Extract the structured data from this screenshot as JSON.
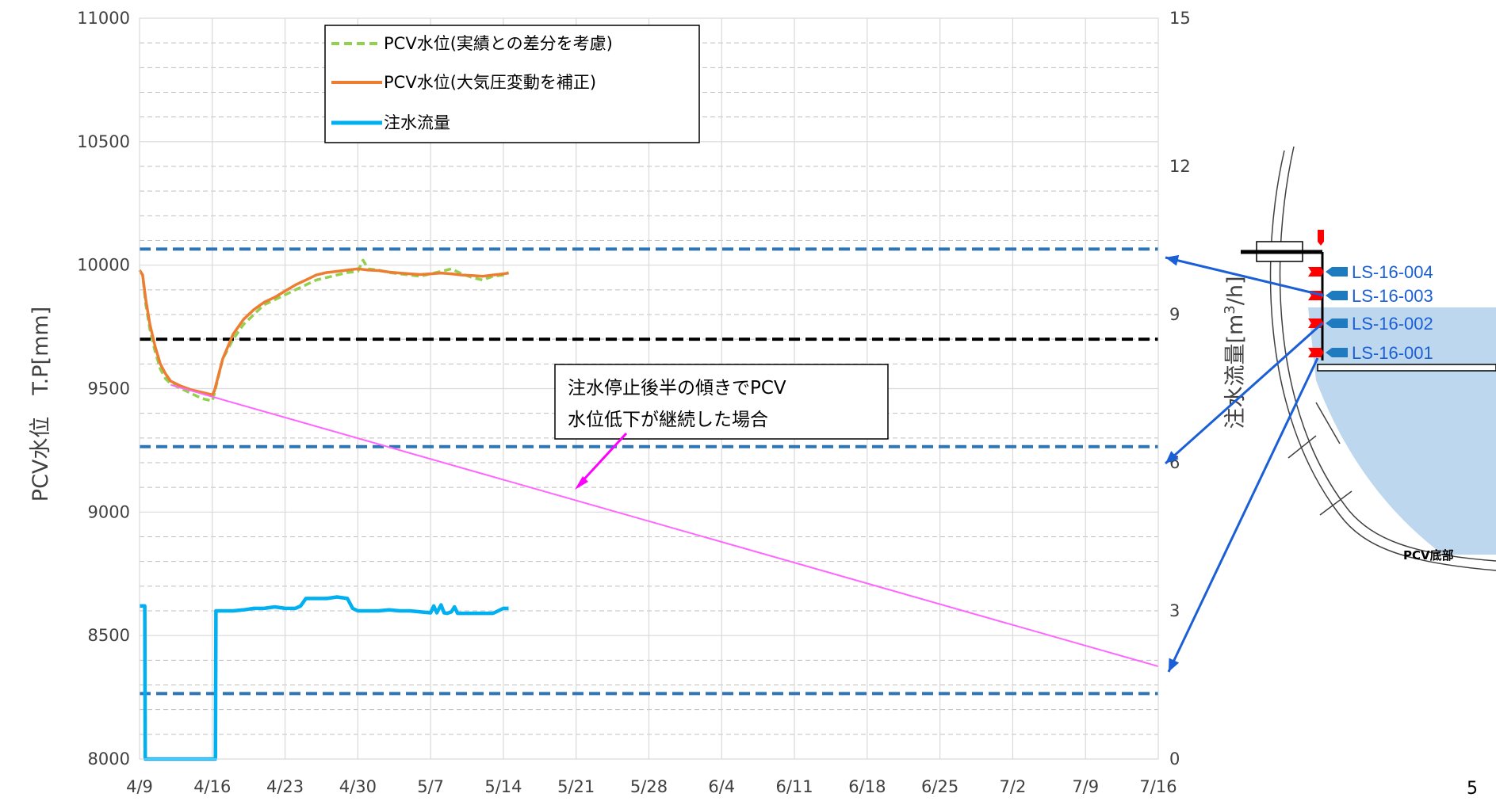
{
  "chart_data": {
    "type": "line",
    "y1label": "PCV水位　T.P[mm]",
    "y2label_main": "注水流量[m",
    "y2label_sup": "3",
    "y2label_tail": "/h]",
    "y1lim": [
      8000,
      11000
    ],
    "y2lim": [
      0,
      15
    ],
    "y1ticks": [
      "8000",
      "8500",
      "9000",
      "9500",
      "10000",
      "10500",
      "11000"
    ],
    "y2ticks": [
      "0",
      "3",
      "6",
      "9",
      "12",
      "15"
    ],
    "x_categories": [
      "4/9",
      "4/16",
      "4/23",
      "4/30",
      "5/7",
      "5/14",
      "5/21",
      "5/28",
      "6/4",
      "6/11",
      "6/18",
      "6/25",
      "7/2",
      "7/9",
      "7/16"
    ],
    "grid": true,
    "legend_position": "top-left",
    "series": [
      {
        "name": "PCV水位(実績との差分を考慮)",
        "axis": "y1",
        "style": "dashed",
        "color": "#92d050",
        "points": [
          [
            0,
            9980
          ],
          [
            0.3,
            9960
          ],
          [
            0.6,
            9840
          ],
          [
            1,
            9740
          ],
          [
            1.5,
            9650
          ],
          [
            2,
            9580
          ],
          [
            2.5,
            9540
          ],
          [
            3,
            9520
          ],
          [
            4,
            9500
          ],
          [
            5,
            9480
          ],
          [
            6,
            9460
          ],
          [
            7,
            9450
          ],
          [
            7.2,
            9480
          ],
          [
            8,
            9620
          ],
          [
            9,
            9700
          ],
          [
            10,
            9760
          ],
          [
            11,
            9800
          ],
          [
            12,
            9840
          ],
          [
            13,
            9860
          ],
          [
            14,
            9880
          ],
          [
            15,
            9900
          ],
          [
            16,
            9920
          ],
          [
            17,
            9940
          ],
          [
            18,
            9950
          ],
          [
            19,
            9960
          ],
          [
            20,
            9970
          ],
          [
            21,
            9975
          ],
          [
            21.5,
            10020
          ],
          [
            22,
            9985
          ],
          [
            23,
            9980
          ],
          [
            24,
            9970
          ],
          [
            25,
            9965
          ],
          [
            26,
            9960
          ],
          [
            27,
            9955
          ],
          [
            28,
            9965
          ],
          [
            29,
            9975
          ],
          [
            30,
            9985
          ],
          [
            31,
            9965
          ],
          [
            32,
            9950
          ],
          [
            33,
            9940
          ],
          [
            34,
            9955
          ],
          [
            35,
            9960
          ],
          [
            35.5,
            9970
          ]
        ]
      },
      {
        "name": "PCV水位(大気圧変動を補正)",
        "axis": "y1",
        "style": "solid",
        "color": "#ed7d31",
        "points": [
          [
            0,
            9980
          ],
          [
            0.3,
            9960
          ],
          [
            0.6,
            9860
          ],
          [
            1,
            9760
          ],
          [
            1.5,
            9670
          ],
          [
            2,
            9600
          ],
          [
            2.5,
            9560
          ],
          [
            3,
            9530
          ],
          [
            4,
            9510
          ],
          [
            5,
            9495
          ],
          [
            6,
            9485
          ],
          [
            7,
            9475
          ],
          [
            7.2,
            9490
          ],
          [
            8,
            9620
          ],
          [
            9,
            9720
          ],
          [
            10,
            9780
          ],
          [
            11,
            9820
          ],
          [
            12,
            9850
          ],
          [
            13,
            9870
          ],
          [
            14,
            9895
          ],
          [
            15,
            9920
          ],
          [
            16,
            9940
          ],
          [
            17,
            9960
          ],
          [
            18,
            9970
          ],
          [
            19,
            9975
          ],
          [
            20,
            9980
          ],
          [
            21,
            9985
          ],
          [
            22,
            9980
          ],
          [
            23,
            9978
          ],
          [
            24,
            9972
          ],
          [
            25,
            9968
          ],
          [
            26,
            9965
          ],
          [
            27,
            9962
          ],
          [
            28,
            9965
          ],
          [
            29,
            9968
          ],
          [
            30,
            9965
          ],
          [
            31,
            9960
          ],
          [
            32,
            9958
          ],
          [
            33,
            9955
          ],
          [
            34,
            9960
          ],
          [
            35,
            9965
          ],
          [
            35.5,
            9968
          ]
        ]
      },
      {
        "name": "注水流量",
        "axis": "y2",
        "style": "solid",
        "color": "#00b0f0",
        "points": [
          [
            0,
            3.1
          ],
          [
            0.5,
            3.1
          ],
          [
            0.55,
            0
          ],
          [
            7.3,
            0
          ],
          [
            7.35,
            3.0
          ],
          [
            8,
            3.0
          ],
          [
            9,
            3.0
          ],
          [
            10,
            3.02
          ],
          [
            11,
            3.05
          ],
          [
            12,
            3.05
          ],
          [
            13,
            3.08
          ],
          [
            14,
            3.05
          ],
          [
            15,
            3.05
          ],
          [
            15.5,
            3.1
          ],
          [
            16,
            3.25
          ],
          [
            18,
            3.25
          ],
          [
            19,
            3.28
          ],
          [
            20,
            3.25
          ],
          [
            20.5,
            3.05
          ],
          [
            21,
            3.0
          ],
          [
            22,
            3.0
          ],
          [
            23,
            3.0
          ],
          [
            24,
            3.02
          ],
          [
            25,
            3.0
          ],
          [
            26,
            3.0
          ],
          [
            27,
            2.98
          ],
          [
            28,
            2.96
          ],
          [
            28.3,
            3.1
          ],
          [
            28.6,
            2.96
          ],
          [
            29,
            3.12
          ],
          [
            29.3,
            2.96
          ],
          [
            29.6,
            2.95
          ],
          [
            30,
            2.98
          ],
          [
            30.3,
            3.08
          ],
          [
            30.6,
            2.95
          ],
          [
            31,
            2.95
          ],
          [
            32,
            2.95
          ],
          [
            33,
            2.95
          ],
          [
            34,
            2.95
          ],
          [
            34.5,
            3.0
          ],
          [
            35,
            3.05
          ],
          [
            35.5,
            3.05
          ]
        ]
      },
      {
        "name": "",
        "axis": "y1",
        "style": "solid",
        "color": "#ff66ff",
        "points": [
          [
            3,
            9515
          ],
          [
            98,
            8375
          ]
        ]
      }
    ],
    "hlines": [
      {
        "y": 10065,
        "color": "#2e75b6",
        "style": "dashed"
      },
      {
        "y": 9700,
        "color": "#000000",
        "style": "dashed"
      },
      {
        "y": 9265,
        "color": "#2e75b6",
        "style": "dashed"
      },
      {
        "y": 8265,
        "color": "#2e75b6",
        "style": "dashed"
      }
    ],
    "annotation": {
      "line1": "注水停止後半の傾きでPCV",
      "line2": "水位低下が継続した場合",
      "arrow_color": "#ff00ff"
    }
  },
  "legend": {
    "items": [
      "PCV水位(実績との差分を考慮)",
      "PCV水位(大気圧変動を補正)",
      "注水流量"
    ]
  },
  "diagram": {
    "sensors": [
      "LS-16-004",
      "LS-16-003",
      "LS-16-002",
      "LS-16-001"
    ],
    "bottom_label": "PCV底部",
    "sensor_marker_color": "#ff0000",
    "sensor_arrow_color": "#1f7bbf",
    "water_color": "#bdd7ee",
    "pointer_color": "#1a5fd6"
  },
  "page": {
    "number": "5"
  }
}
